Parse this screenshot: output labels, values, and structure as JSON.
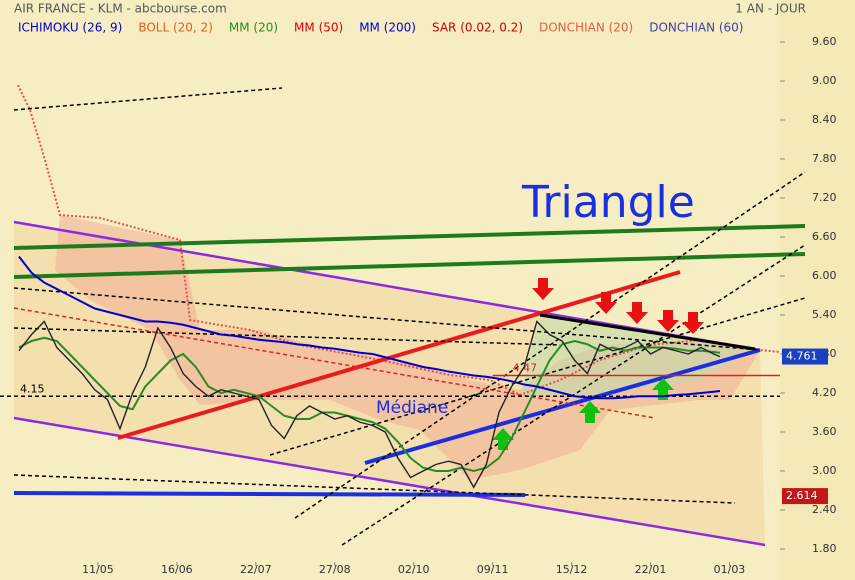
{
  "chart_data": {
    "type": "line",
    "title": "AIR FRANCE - KLM - abcbourse.com",
    "subtitle": "1 AN - JOUR",
    "x": [
      0,
      4,
      8,
      12,
      16,
      20,
      24,
      28,
      32,
      36,
      40,
      44,
      48,
      52,
      56,
      60,
      64,
      68,
      72,
      76,
      80,
      84,
      88,
      92,
      96,
      100,
      104,
      108,
      112,
      116,
      120,
      124,
      128,
      132,
      136,
      140,
      144,
      148,
      152,
      156,
      160,
      164,
      168,
      172,
      176,
      180,
      184,
      188,
      192,
      196,
      200,
      204,
      208,
      212,
      216,
      220,
      222
    ],
    "values": [
      4.85,
      5.1,
      5.3,
      4.9,
      4.7,
      4.5,
      4.25,
      4.1,
      3.65,
      4.2,
      4.6,
      5.2,
      4.9,
      4.5,
      4.3,
      4.15,
      4.25,
      4.2,
      4.15,
      4.1,
      3.7,
      3.5,
      3.85,
      4.0,
      3.9,
      3.8,
      3.85,
      3.75,
      3.7,
      3.6,
      3.2,
      2.9,
      3.0,
      3.1,
      3.15,
      3.1,
      2.75,
      3.1,
      3.9,
      4.3,
      4.6,
      5.3,
      5.1,
      5.0,
      4.7,
      4.5,
      4.95,
      4.85,
      4.9,
      5.0,
      4.8,
      4.9,
      4.85,
      4.8,
      4.9,
      4.8,
      4.76
    ],
    "color": "#222222",
    "series": [
      {
        "name": "ICHIMOKU (26, 9)",
        "color": "#0000cc"
      },
      {
        "name": "BOLL (20, 2)",
        "color": "#e06020"
      },
      {
        "name": "MM (20)",
        "color": "#2a8a2a",
        "values": [
          4.9,
          5.0,
          5.05,
          5.0,
          4.8,
          4.6,
          4.4,
          4.2,
          4.0,
          3.95,
          4.3,
          4.5,
          4.7,
          4.8,
          4.6,
          4.3,
          4.2,
          4.25,
          4.2,
          4.15,
          4.0,
          3.85,
          3.8,
          3.8,
          3.9,
          3.9,
          3.85,
          3.8,
          3.75,
          3.65,
          3.45,
          3.2,
          3.05,
          3.0,
          3.0,
          3.05,
          3.0,
          3.05,
          3.2,
          3.5,
          3.9,
          4.3,
          4.7,
          4.95,
          5.0,
          4.95,
          4.85,
          4.9,
          4.85,
          4.9,
          4.9,
          4.9,
          4.88,
          4.85,
          4.85,
          4.83,
          4.82
        ]
      },
      {
        "name": "MM (50)",
        "color": "#dd0000"
      },
      {
        "name": "MM (200)",
        "color": "#0000cc",
        "values": [
          6.3,
          6.05,
          5.9,
          5.8,
          5.7,
          5.6,
          5.5,
          5.45,
          5.4,
          5.35,
          5.3,
          5.3,
          5.28,
          5.25,
          5.2,
          5.15,
          5.1,
          5.08,
          5.05,
          5.02,
          5.0,
          4.98,
          4.95,
          4.93,
          4.9,
          4.88,
          4.85,
          4.82,
          4.8,
          4.75,
          4.7,
          4.65,
          4.6,
          4.57,
          4.53,
          4.5,
          4.47,
          4.45,
          4.42,
          4.38,
          4.33,
          4.3,
          4.25,
          4.2,
          4.15,
          4.13,
          4.12,
          4.12,
          4.13,
          4.15,
          4.15,
          4.15,
          4.17,
          4.18,
          4.2,
          4.22,
          4.23
        ]
      },
      {
        "name": "SAR (0.02, 0.2)",
        "color": "#cc0000"
      },
      {
        "name": "DONCHIAN (20)",
        "color": "#e06040"
      },
      {
        "name": "DONCHIAN (60)",
        "color": "#4040aa"
      }
    ],
    "xlim": [
      -6,
      241
    ],
    "xticks": [
      {
        "value": 25,
        "label": "11/05"
      },
      {
        "value": 50,
        "label": "16/06"
      },
      {
        "value": 75,
        "label": "22/07"
      },
      {
        "value": 100,
        "label": "27/08"
      },
      {
        "value": 125,
        "label": "02/10"
      },
      {
        "value": 150,
        "label": "09/11"
      },
      {
        "value": 175,
        "label": "15/12"
      },
      {
        "value": 200,
        "label": "22/01"
      },
      {
        "value": 225,
        "label": "01/03"
      }
    ],
    "ylim": [
      1.6,
      10.0
    ],
    "yticks": [
      {
        "value": 1.8,
        "label": "1.80"
      },
      {
        "value": 2.4,
        "label": "2.40"
      },
      {
        "value": 3.0,
        "label": "3.00"
      },
      {
        "value": 3.6,
        "label": "3.60"
      },
      {
        "value": 4.2,
        "label": "4.20"
      },
      {
        "value": 4.8,
        "label": "4.80"
      },
      {
        "value": 5.4,
        "label": "5.40"
      },
      {
        "value": 6.0,
        "label": "6.00"
      },
      {
        "value": 6.6,
        "label": "6.60"
      },
      {
        "value": 7.2,
        "label": "7.20"
      },
      {
        "value": 7.8,
        "label": "7.80"
      },
      {
        "value": 8.4,
        "label": "8.40"
      },
      {
        "value": 9.0,
        "label": "9.00"
      },
      {
        "value": 9.6,
        "label": "9.60"
      }
    ],
    "price_tags": [
      {
        "value": 4.761,
        "color": "#1a3fc0"
      },
      {
        "value": 2.614,
        "color": "#c01818"
      }
    ],
    "levels": [
      {
        "value": 4.47,
        "color": "#dd2020",
        "from": 150
      },
      {
        "value": 4.15,
        "color": "#000000",
        "from": -6
      }
    ],
    "annotations": [
      "Triangle",
      "Médiane"
    ]
  }
}
